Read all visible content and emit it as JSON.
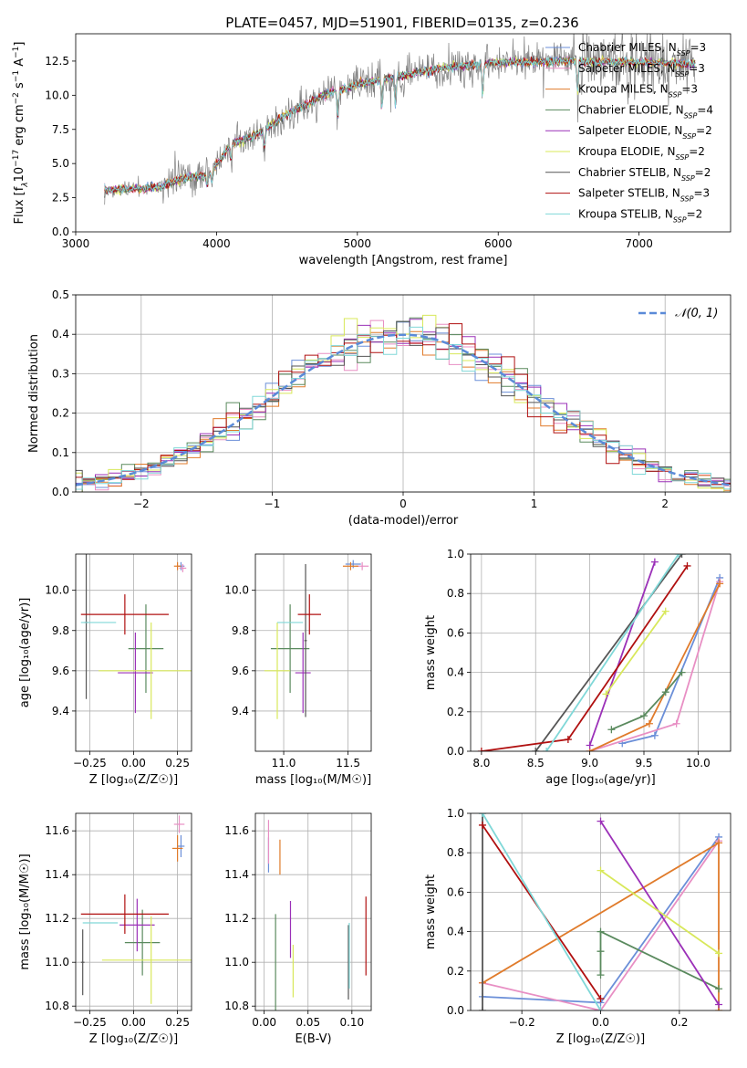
{
  "figure_title": "PLATE=0457, MJD=51901, FIBERID=0135, z=0.236",
  "colors": {
    "chabrier_miles": "#6b8fd8",
    "salpeter_miles": "#e88fc4",
    "kroupa_miles": "#e07b2b",
    "chabrier_elodie": "#5a8a5e",
    "salpeter_elodie": "#9b30b8",
    "kroupa_elodie": "#d8e85a",
    "chabrier_stelib": "#555555",
    "salpeter_stelib": "#b01010",
    "kroupa_stelib": "#80d8d8",
    "data_gray": "#808080",
    "gaussian": "#5a8ad8",
    "grid": "#b0b0b0"
  },
  "chart_data": [
    {
      "id": "spectrum",
      "type": "line",
      "title": "PLATE=0457, MJD=51901, FIBERID=0135, z=0.236",
      "xlabel": "wavelength [Angstrom, rest frame]",
      "ylabel_parts": [
        "Flux [f",
        "λ",
        "10",
        "−17",
        " erg cm",
        "−2",
        " s",
        "−1",
        " A",
        "−1",
        "]"
      ],
      "xlim": [
        3000,
        7650
      ],
      "ylim": [
        0,
        14.5
      ],
      "xticks": [
        3000,
        4000,
        5000,
        6000,
        7000
      ],
      "xtick_labels": [
        "3000",
        "4000",
        "5000",
        "6000",
        "7000"
      ],
      "yticks": [
        0,
        2.5,
        5,
        7.5,
        10,
        12.5
      ],
      "ytick_labels": [
        "0.0",
        "2.5",
        "5.0",
        "7.5",
        "10.0",
        "12.5"
      ],
      "grid": false,
      "legend_position": "top-right",
      "continuum": {
        "x": [
          3200,
          3300,
          3500,
          3600,
          3750,
          3950,
          4100,
          4300,
          4500,
          4800,
          5000,
          5300,
          5600,
          6000,
          6500,
          7000,
          7400
        ],
        "y": [
          3.0,
          3.1,
          3.2,
          3.3,
          3.9,
          4.2,
          6.4,
          7.2,
          8.6,
          10.2,
          10.8,
          11.4,
          12.0,
          12.4,
          12.5,
          12.4,
          12.3
        ]
      },
      "series": [
        {
          "key": "chabrier_miles",
          "name_pre": "Chabrier MILES, N",
          "name_sub": "SSP",
          "name_post": "=3"
        },
        {
          "key": "salpeter_miles",
          "name_pre": "Salpeter MILES, N",
          "name_sub": "SSP",
          "name_post": "=3"
        },
        {
          "key": "kroupa_miles",
          "name_pre": "Kroupa MILES, N",
          "name_sub": "SSP",
          "name_post": "=3"
        },
        {
          "key": "chabrier_elodie",
          "name_pre": "Chabrier ELODIE, N",
          "name_sub": "SSP",
          "name_post": "=4"
        },
        {
          "key": "salpeter_elodie",
          "name_pre": "Salpeter ELODIE, N",
          "name_sub": "SSP",
          "name_post": "=2"
        },
        {
          "key": "kroupa_elodie",
          "name_pre": "Kroupa ELODIE, N",
          "name_sub": "SSP",
          "name_post": "=2"
        },
        {
          "key": "chabrier_stelib",
          "name_pre": "Chabrier STELIB, N",
          "name_sub": "SSP",
          "name_post": "=2"
        },
        {
          "key": "salpeter_stelib",
          "name_pre": "Salpeter STELIB, N",
          "name_sub": "SSP",
          "name_post": "=3"
        },
        {
          "key": "kroupa_stelib",
          "name_pre": "Kroupa STELIB, N",
          "name_sub": "SSP",
          "name_post": "=2"
        }
      ]
    },
    {
      "id": "residuals",
      "type": "line",
      "xlabel": "(data-model)/error",
      "ylabel": "Normed distribution",
      "xlim": [
        -2.5,
        2.5
      ],
      "ylim": [
        0,
        0.5
      ],
      "xticks": [
        -2,
        -1,
        0,
        1,
        2
      ],
      "xtick_labels": [
        "−2",
        "−1",
        "0",
        "1",
        "2"
      ],
      "yticks": [
        0,
        0.1,
        0.2,
        0.3,
        0.4,
        0.5
      ],
      "ytick_labels": [
        "0.0",
        "0.1",
        "0.2",
        "0.3",
        "0.4",
        "0.5"
      ],
      "grid": true,
      "legend_position": "top-right",
      "gaussian_label": "𝒩(0, 1)",
      "bin_width": 0.1
    },
    {
      "id": "z_vs_age",
      "type": "scatter",
      "xlabel": "Z [log₁₀(Z/Z☉)]",
      "ylabel": "age  [log₁₀(age/yr)]",
      "xlim": [
        -0.33,
        0.33
      ],
      "ylim": [
        9.2,
        10.18
      ],
      "xticks": [
        -0.25,
        0,
        0.25
      ],
      "xtick_labels": [
        "−0.25",
        "0.00",
        "0.25"
      ],
      "yticks": [
        9.4,
        9.6,
        9.8,
        10.0
      ],
      "ytick_labels": [
        "9.4",
        "9.6",
        "9.8",
        "10.0"
      ],
      "grid": true,
      "points": [
        {
          "key": "chabrier_miles",
          "x": 0.27,
          "xerr": 0.02,
          "y": 10.12,
          "yerr": 0.02
        },
        {
          "key": "salpeter_miles",
          "x": 0.28,
          "xerr": 0.02,
          "y": 10.11,
          "yerr": 0.02
        },
        {
          "key": "kroupa_miles",
          "x": 0.25,
          "xerr": 0.02,
          "y": 10.12,
          "yerr": 0.02
        },
        {
          "key": "chabrier_elodie",
          "x": 0.07,
          "xerr": 0.1,
          "y": 9.71,
          "yerr": 0.22
        },
        {
          "key": "salpeter_elodie",
          "x": 0.01,
          "xerr": 0.1,
          "y": 9.59,
          "yerr": 0.2
        },
        {
          "key": "kroupa_elodie",
          "x": 0.1,
          "xerr": 0.3,
          "y": 9.6,
          "yerr": 0.24
        },
        {
          "key": "chabrier_stelib",
          "x": -0.27,
          "xerr": 0.01,
          "y": 9.84,
          "yerr": 0.38
        },
        {
          "key": "salpeter_stelib",
          "x": -0.05,
          "xerr": 0.25,
          "y": 9.88,
          "yerr": 0.1
        },
        {
          "key": "kroupa_stelib",
          "x": -0.2,
          "xerr": 0.1,
          "y": 9.84,
          "yerr": 0.0
        }
      ]
    },
    {
      "id": "mass_vs_age",
      "type": "scatter",
      "xlabel": "mass [log₁₀(M/M☉)]",
      "xlim": [
        10.78,
        11.68
      ],
      "ylim": [
        9.2,
        10.18
      ],
      "xticks": [
        11.0,
        11.5
      ],
      "xtick_labels": [
        "11.0",
        "11.5"
      ],
      "yticks": [
        9.4,
        9.6,
        9.8,
        10.0
      ],
      "ytick_labels": [
        "9.4",
        "9.6",
        "9.8",
        "10.0"
      ],
      "grid": true,
      "points": [
        {
          "key": "chabrier_miles",
          "x": 11.54,
          "xerr": 0.06,
          "y": 10.13,
          "yerr": 0.02
        },
        {
          "key": "salpeter_miles",
          "x": 11.61,
          "xerr": 0.05,
          "y": 10.12,
          "yerr": 0.02
        },
        {
          "key": "kroupa_miles",
          "x": 11.52,
          "xerr": 0.06,
          "y": 10.12,
          "yerr": 0.02
        },
        {
          "key": "chabrier_elodie",
          "x": 11.05,
          "xerr": 0.15,
          "y": 9.71,
          "yerr": 0.22
        },
        {
          "key": "salpeter_elodie",
          "x": 11.15,
          "xerr": 0.06,
          "y": 9.59,
          "yerr": 0.2
        },
        {
          "key": "kroupa_elodie",
          "x": 10.95,
          "xerr": 0.1,
          "y": 9.6,
          "yerr": 0.24
        },
        {
          "key": "chabrier_stelib",
          "x": 11.17,
          "xerr": 0.01,
          "y": 9.75,
          "yerr": 0.38
        },
        {
          "key": "salpeter_stelib",
          "x": 11.2,
          "xerr": 0.09,
          "y": 9.88,
          "yerr": 0.1
        },
        {
          "key": "kroupa_stelib",
          "x": 11.05,
          "xerr": 0.1,
          "y": 9.84,
          "yerr": 0.0
        }
      ]
    },
    {
      "id": "age_vs_weight",
      "type": "line",
      "xlabel": "age  [log₁₀(age/yr)]",
      "ylabel": "mass weight",
      "xlim": [
        7.9,
        10.3
      ],
      "ylim": [
        0,
        1
      ],
      "xticks": [
        8.0,
        8.5,
        9.0,
        9.5,
        10.0
      ],
      "xtick_labels": [
        "8.0",
        "8.5",
        "9.0",
        "9.5",
        "10.0"
      ],
      "yticks": [
        0,
        0.2,
        0.4,
        0.6,
        0.8,
        1.0
      ],
      "ytick_labels": [
        "0.0",
        "0.2",
        "0.4",
        "0.6",
        "0.8",
        "1.0"
      ],
      "grid": true,
      "series": [
        {
          "key": "chabrier_miles",
          "x": [
            9.3,
            9.6,
            10.2
          ],
          "y": [
            0.04,
            0.08,
            0.88
          ]
        },
        {
          "key": "salpeter_miles",
          "x": [
            9.0,
            9.8,
            10.2
          ],
          "y": [
            0.0,
            0.14,
            0.86
          ]
        },
        {
          "key": "kroupa_miles",
          "x": [
            9.0,
            9.55,
            10.2
          ],
          "y": [
            0.0,
            0.14,
            0.85
          ]
        },
        {
          "key": "chabrier_elodie",
          "x": [
            9.2,
            9.5,
            9.7,
            9.85
          ],
          "y": [
            0.11,
            0.18,
            0.3,
            0.4
          ]
        },
        {
          "key": "salpeter_elodie",
          "x": [
            9.0,
            9.6
          ],
          "y": [
            0.03,
            0.96
          ]
        },
        {
          "key": "kroupa_elodie",
          "x": [
            9.15,
            9.7
          ],
          "y": [
            0.29,
            0.71
          ]
        },
        {
          "key": "chabrier_stelib",
          "x": [
            8.5,
            9.85
          ],
          "y": [
            0.0,
            1.0
          ]
        },
        {
          "key": "salpeter_stelib",
          "x": [
            8.0,
            8.8,
            9.9
          ],
          "y": [
            0.0,
            0.06,
            0.94
          ]
        },
        {
          "key": "kroupa_stelib",
          "x": [
            8.6,
            9.82
          ],
          "y": [
            0.0,
            1.0
          ]
        }
      ]
    },
    {
      "id": "z_vs_mass",
      "type": "scatter",
      "xlabel": "Z [log₁₀(Z/Z☉)]",
      "ylabel": "mass [log₁₀(M/M☉)]",
      "xlim": [
        -0.33,
        0.33
      ],
      "ylim": [
        10.78,
        11.68
      ],
      "xticks": [
        -0.25,
        0,
        0.25
      ],
      "xtick_labels": [
        "−0.25",
        "0.00",
        "0.25"
      ],
      "yticks": [
        10.8,
        11.0,
        11.2,
        11.4,
        11.6
      ],
      "ytick_labels": [
        "10.8",
        "11.0",
        "11.2",
        "11.4",
        "11.6"
      ],
      "grid": true,
      "points": [
        {
          "key": "chabrier_miles",
          "x": 0.27,
          "xerr": 0.02,
          "y": 11.53,
          "yerr": 0.05
        },
        {
          "key": "salpeter_miles",
          "x": 0.26,
          "xerr": 0.03,
          "y": 11.63,
          "yerr": 0.04
        },
        {
          "key": "kroupa_miles",
          "x": 0.25,
          "xerr": 0.03,
          "y": 11.52,
          "yerr": 0.06
        },
        {
          "key": "chabrier_elodie",
          "x": 0.05,
          "xerr": 0.1,
          "y": 11.09,
          "yerr": 0.15
        },
        {
          "key": "salpeter_elodie",
          "x": 0.02,
          "xerr": 0.1,
          "y": 11.17,
          "yerr": 0.12
        },
        {
          "key": "kroupa_elodie",
          "x": 0.1,
          "xerr": 0.28,
          "y": 11.01,
          "yerr": 0.2
        },
        {
          "key": "chabrier_stelib",
          "x": -0.29,
          "xerr": 0.01,
          "y": 11.0,
          "yerr": 0.15
        },
        {
          "key": "salpeter_stelib",
          "x": -0.05,
          "xerr": 0.25,
          "y": 11.22,
          "yerr": 0.09
        },
        {
          "key": "kroupa_stelib",
          "x": -0.19,
          "xerr": 0.1,
          "y": 11.18,
          "yerr": 0.0
        }
      ]
    },
    {
      "id": "ebv_vs_mass",
      "type": "scatter",
      "xlabel": "E(B-V)",
      "xlim": [
        -0.01,
        0.122
      ],
      "ylim": [
        10.78,
        11.68
      ],
      "xticks": [
        0.0,
        0.05,
        0.1
      ],
      "xtick_labels": [
        "0.00",
        "0.05",
        "0.10"
      ],
      "yticks": [
        10.8,
        11.0,
        11.2,
        11.4,
        11.6
      ],
      "ytick_labels": [
        "10.8",
        "11.0",
        "11.2",
        "11.4",
        "11.6"
      ],
      "grid": true,
      "points": [
        {
          "key": "chabrier_miles",
          "x": 0.005,
          "y": 11.49,
          "yerr": 0.08
        },
        {
          "key": "salpeter_miles",
          "x": 0.005,
          "y": 11.55,
          "yerr": 0.1
        },
        {
          "key": "kroupa_miles",
          "x": 0.018,
          "y": 11.48,
          "yerr": 0.08
        },
        {
          "key": "chabrier_elodie",
          "x": 0.013,
          "y": 11.0,
          "yerr": 0.22
        },
        {
          "key": "salpeter_elodie",
          "x": 0.03,
          "y": 11.15,
          "yerr": 0.13
        },
        {
          "key": "kroupa_elodie",
          "x": 0.033,
          "y": 10.96,
          "yerr": 0.12
        },
        {
          "key": "chabrier_stelib",
          "x": 0.096,
          "y": 11.0,
          "yerr": 0.17
        },
        {
          "key": "salpeter_stelib",
          "x": 0.116,
          "y": 11.12,
          "yerr": 0.18
        },
        {
          "key": "kroupa_stelib",
          "x": 0.097,
          "y": 11.03,
          "yerr": 0.15
        }
      ]
    },
    {
      "id": "z_vs_weight",
      "type": "line",
      "xlabel": "Z [log₁₀(Z/Z☉)]",
      "ylabel": "mass weight",
      "xlim": [
        -0.33,
        0.33
      ],
      "ylim": [
        0,
        1
      ],
      "xticks": [
        -0.2,
        0,
        0.2
      ],
      "xtick_labels": [
        "−0.2",
        "0.0",
        "0.2"
      ],
      "yticks": [
        0,
        0.2,
        0.4,
        0.6,
        0.8,
        1.0
      ],
      "ytick_labels": [
        "0.0",
        "0.2",
        "0.4",
        "0.6",
        "0.8",
        "1.0"
      ],
      "grid": true,
      "series": [
        {
          "key": "chabrier_miles",
          "x": [
            -0.3,
            0.0,
            0.3
          ],
          "y": [
            0.07,
            0.04,
            0.88
          ]
        },
        {
          "key": "salpeter_miles",
          "x": [
            -0.3,
            0.0,
            0.3
          ],
          "y": [
            0.14,
            0.0,
            0.86
          ]
        },
        {
          "key": "kroupa_miles",
          "x": [
            -0.3,
            0.3,
            0.3
          ],
          "y": [
            0.14,
            0.85,
            0.0
          ]
        },
        {
          "key": "chabrier_elodie",
          "x": [
            0.0,
            0.0,
            0.0,
            0.3
          ],
          "y": [
            0.18,
            0.3,
            0.4,
            0.11
          ]
        },
        {
          "key": "salpeter_elodie",
          "x": [
            0.0,
            0.3
          ],
          "y": [
            0.96,
            0.03
          ]
        },
        {
          "key": "kroupa_elodie",
          "x": [
            0.0,
            0.3
          ],
          "y": [
            0.71,
            0.29
          ]
        },
        {
          "key": "chabrier_stelib",
          "x": [
            -0.3,
            -0.3
          ],
          "y": [
            1.0,
            0.0
          ]
        },
        {
          "key": "salpeter_stelib",
          "x": [
            -0.3,
            0.0
          ],
          "y": [
            0.94,
            0.06
          ]
        },
        {
          "key": "kroupa_stelib",
          "x": [
            -0.3,
            0.0
          ],
          "y": [
            1.0,
            0.0
          ]
        }
      ]
    }
  ]
}
